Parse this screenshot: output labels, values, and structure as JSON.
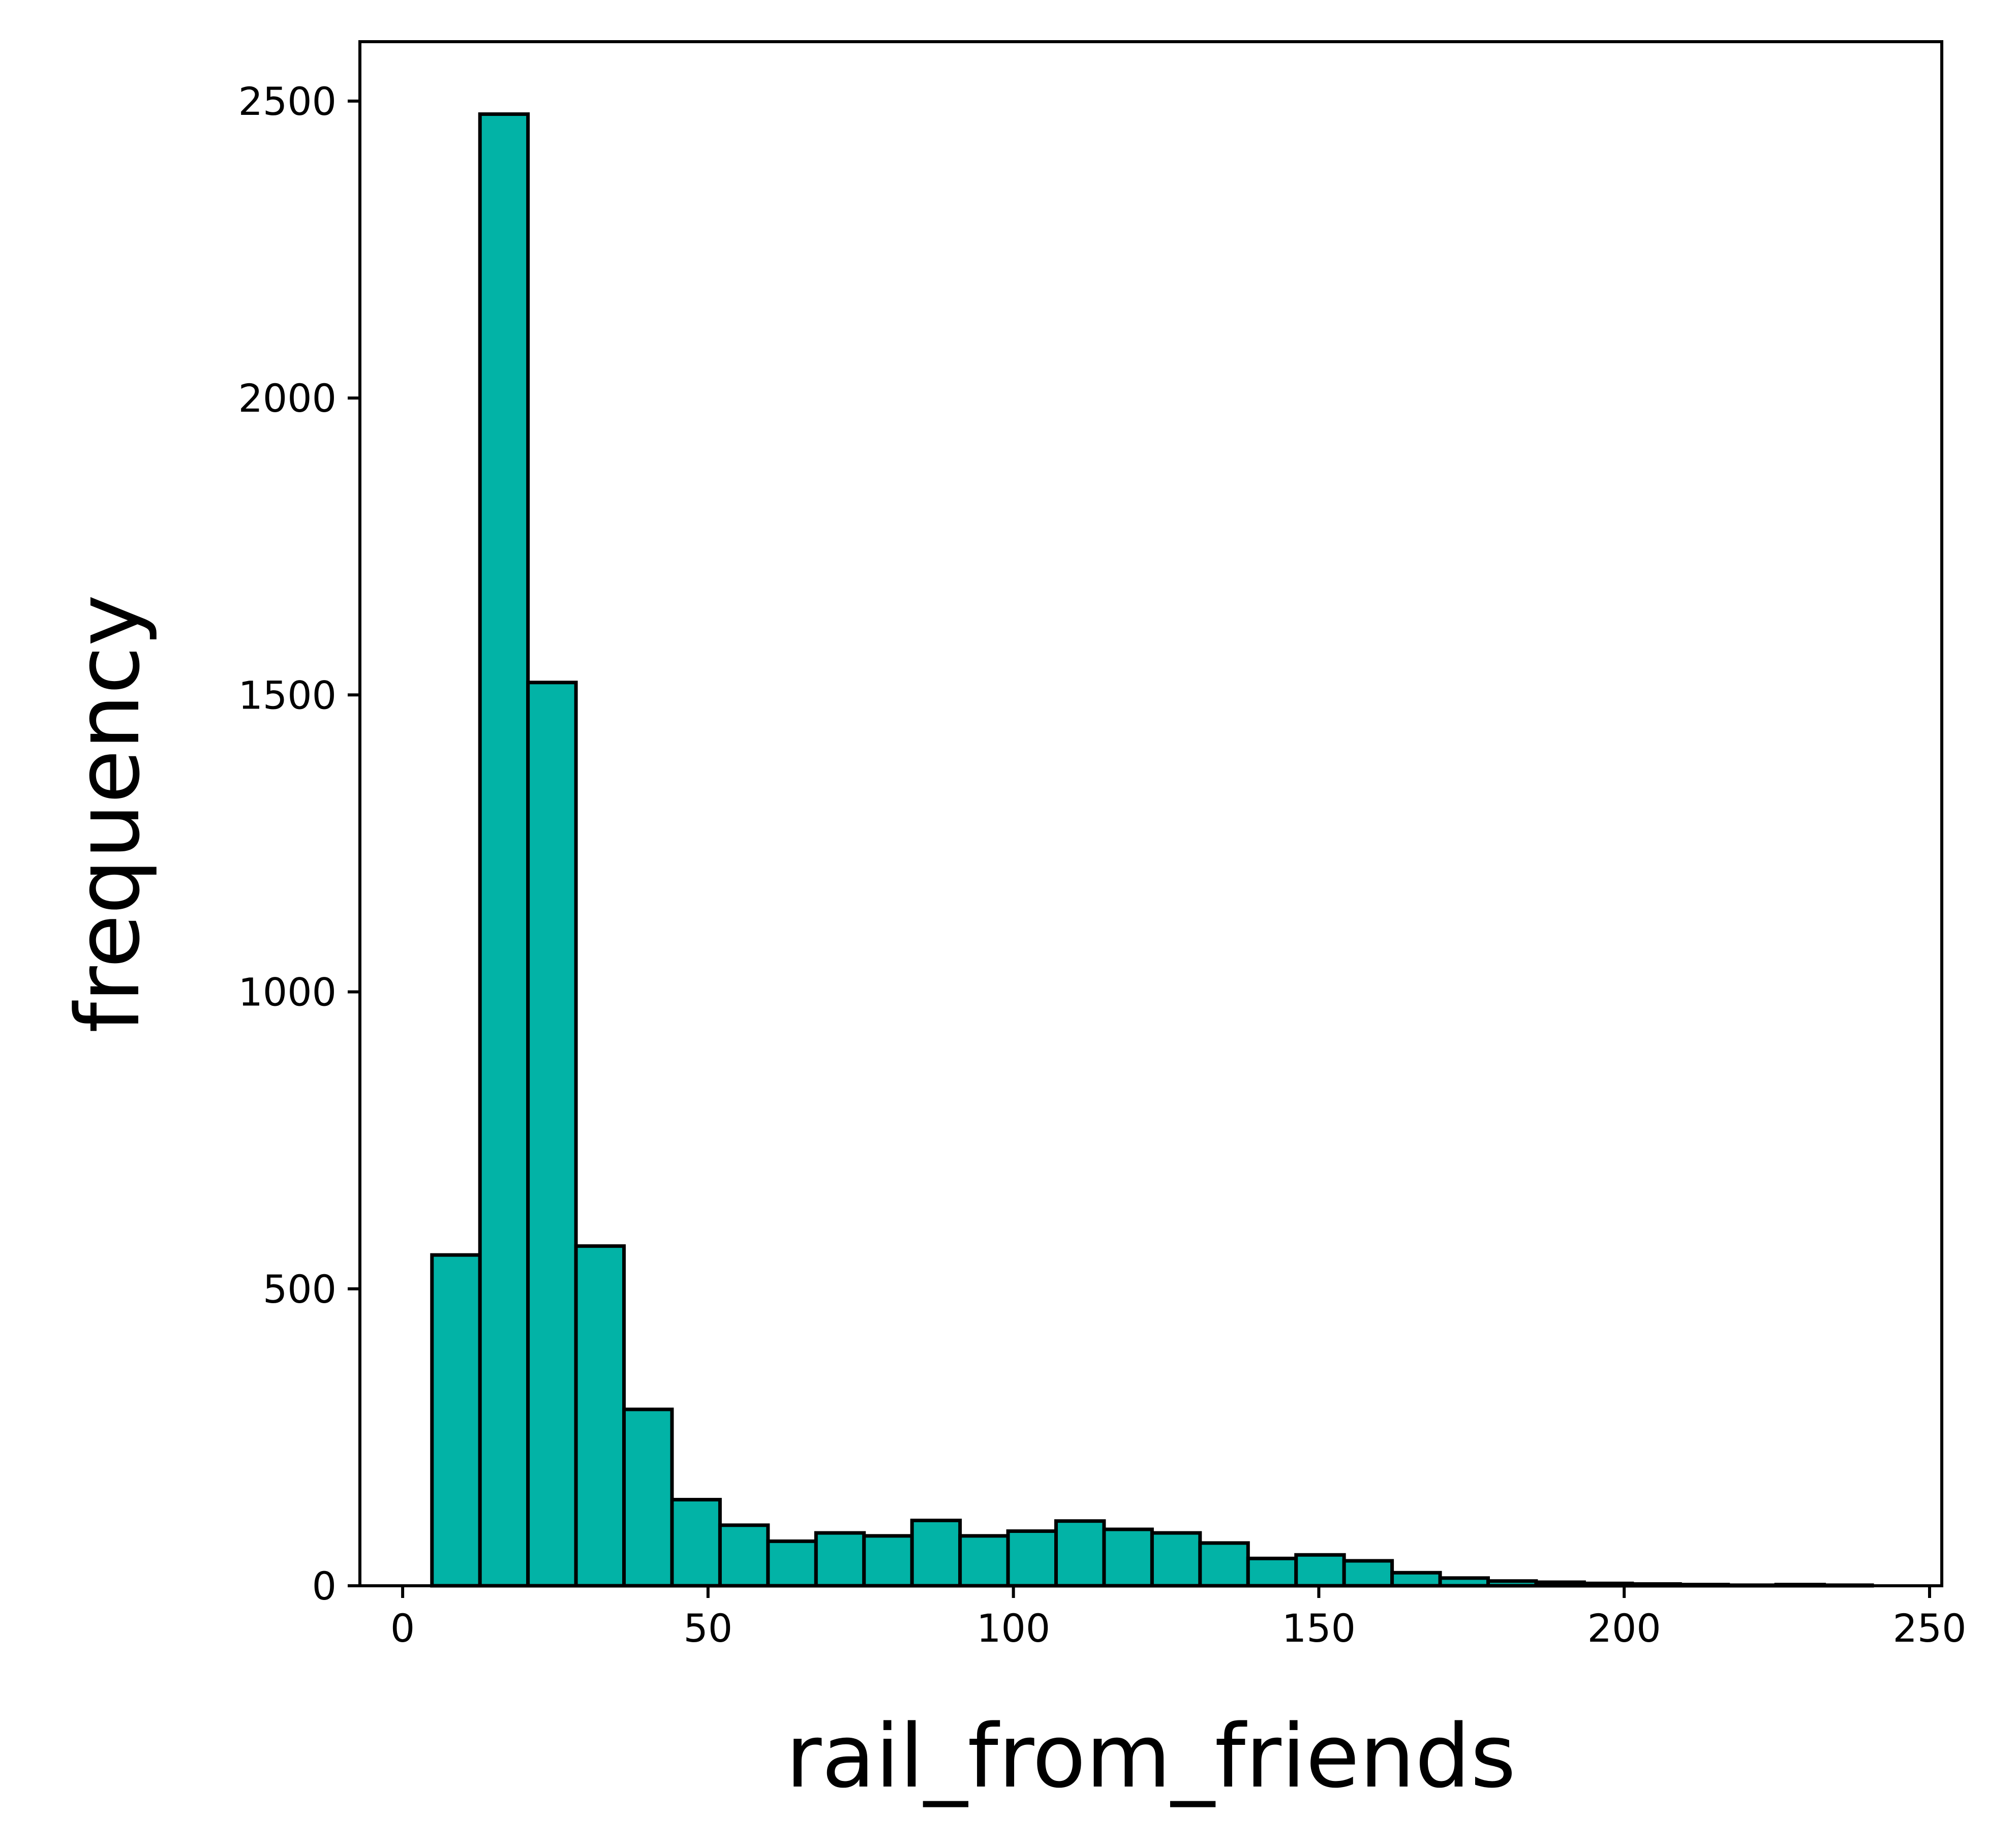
{
  "chart_data": {
    "type": "bar",
    "xlabel": "rail_from_friends",
    "ylabel": "frequency",
    "xlim": [
      -7,
      252
    ],
    "ylim": [
      0,
      2600
    ],
    "xticks": [
      0,
      50,
      100,
      150,
      200,
      250
    ],
    "yticks": [
      0,
      500,
      1000,
      1500,
      2000,
      2500
    ],
    "grid": false,
    "colors": {
      "bar_fill": "#02b3a6",
      "bar_edge": "#000000",
      "axis": "#000000"
    },
    "bins": [
      {
        "x0": 4.8,
        "x1": 12.66,
        "count": 557
      },
      {
        "x0": 12.66,
        "x1": 20.52,
        "count": 2478
      },
      {
        "x0": 20.52,
        "x1": 28.38,
        "count": 1521
      },
      {
        "x0": 28.38,
        "x1": 36.24,
        "count": 572
      },
      {
        "x0": 36.24,
        "x1": 44.1,
        "count": 297
      },
      {
        "x0": 44.1,
        "x1": 51.96,
        "count": 145
      },
      {
        "x0": 51.96,
        "x1": 59.82,
        "count": 102
      },
      {
        "x0": 59.82,
        "x1": 67.68,
        "count": 75
      },
      {
        "x0": 67.68,
        "x1": 75.54,
        "count": 89
      },
      {
        "x0": 75.54,
        "x1": 83.4,
        "count": 84
      },
      {
        "x0": 83.4,
        "x1": 91.26,
        "count": 110
      },
      {
        "x0": 91.26,
        "x1": 99.12,
        "count": 84
      },
      {
        "x0": 99.12,
        "x1": 106.98,
        "count": 92
      },
      {
        "x0": 106.98,
        "x1": 114.84,
        "count": 109
      },
      {
        "x0": 114.84,
        "x1": 122.7,
        "count": 95
      },
      {
        "x0": 122.7,
        "x1": 130.56,
        "count": 89
      },
      {
        "x0": 130.56,
        "x1": 138.42,
        "count": 72
      },
      {
        "x0": 138.42,
        "x1": 146.28,
        "count": 46
      },
      {
        "x0": 146.28,
        "x1": 154.14,
        "count": 52
      },
      {
        "x0": 154.14,
        "x1": 162.0,
        "count": 42
      },
      {
        "x0": 162.0,
        "x1": 169.86,
        "count": 22
      },
      {
        "x0": 169.86,
        "x1": 177.72,
        "count": 13
      },
      {
        "x0": 177.72,
        "x1": 185.58,
        "count": 8
      },
      {
        "x0": 185.58,
        "x1": 193.44,
        "count": 6
      },
      {
        "x0": 193.44,
        "x1": 201.3,
        "count": 4
      },
      {
        "x0": 201.3,
        "x1": 209.16,
        "count": 3
      },
      {
        "x0": 209.16,
        "x1": 217.02,
        "count": 2
      },
      {
        "x0": 217.02,
        "x1": 224.88,
        "count": 1
      },
      {
        "x0": 224.88,
        "x1": 232.74,
        "count": 2
      },
      {
        "x0": 232.74,
        "x1": 240.6,
        "count": 1
      }
    ]
  }
}
